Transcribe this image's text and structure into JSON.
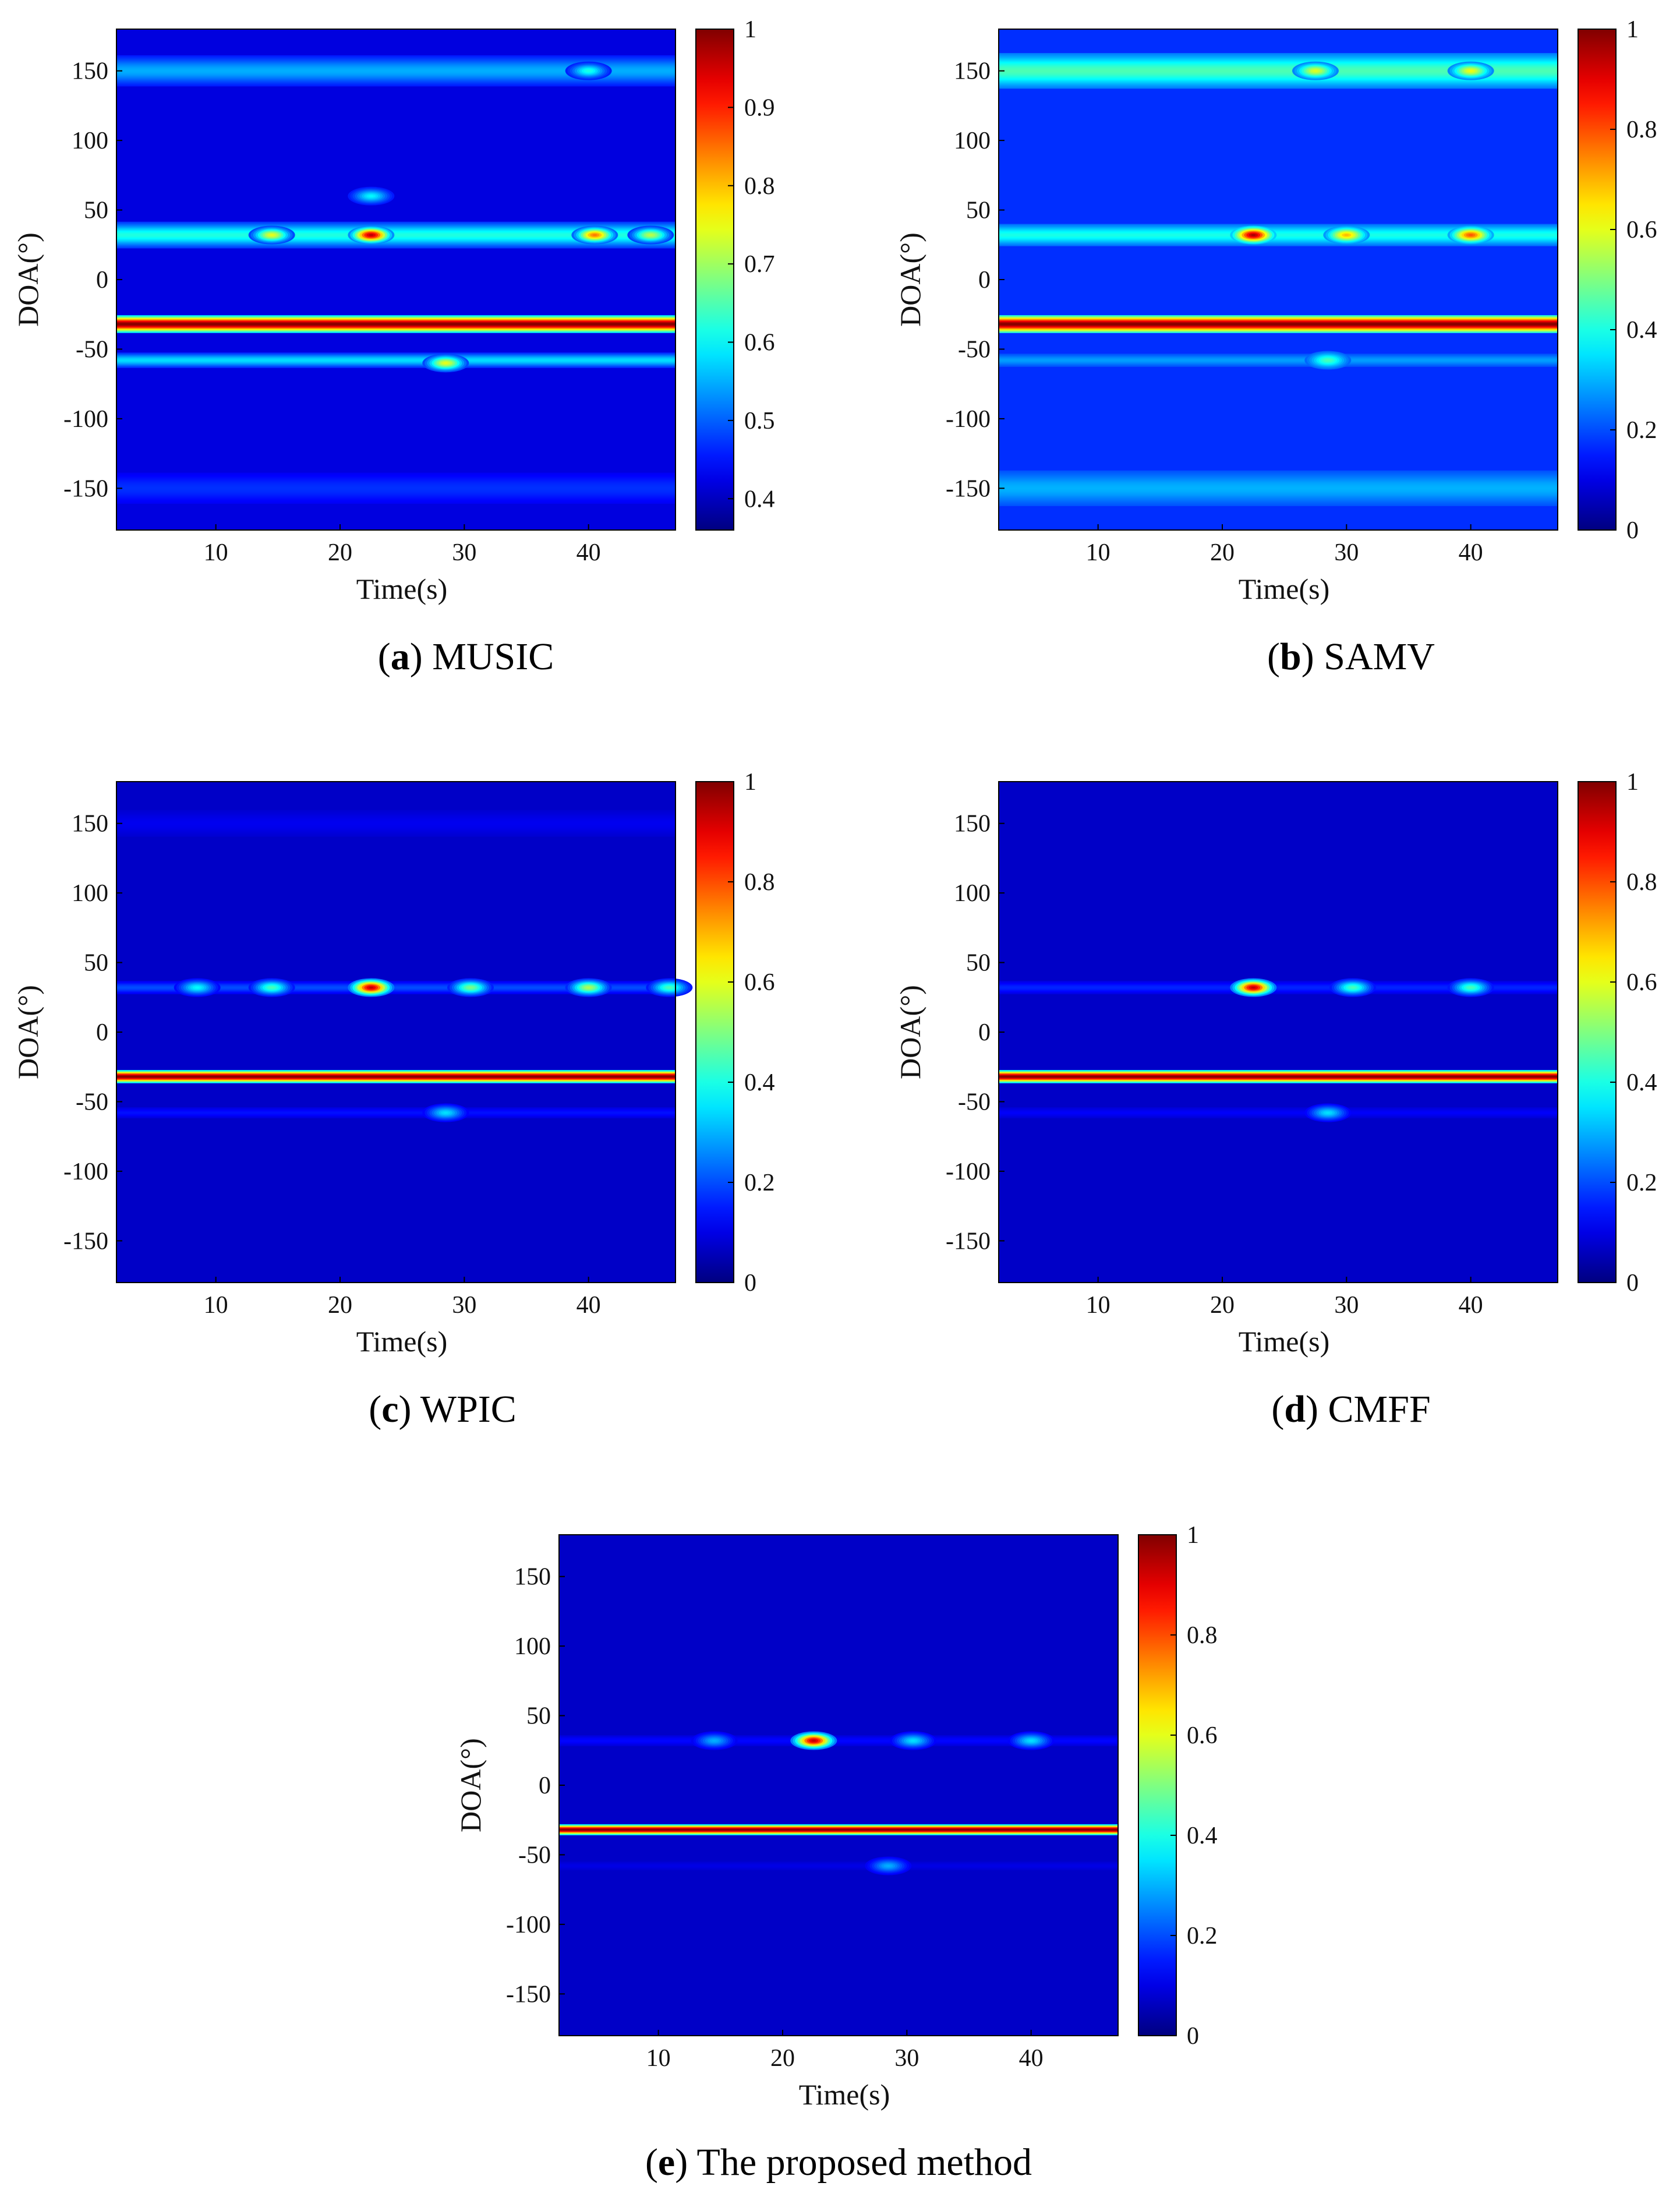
{
  "colors": {
    "frame": "#000000",
    "background": "#ffffff"
  },
  "colormap": "jet",
  "chart_data": [
    {
      "id": "a",
      "type": "heatmap",
      "letter": "a",
      "method": "MUSIC",
      "xlabel": "Time(s)",
      "ylabel": "DOA(°)",
      "xlim": [
        2,
        47
      ],
      "ylim": [
        -180,
        180
      ],
      "xticks": [
        "10",
        "20",
        "30",
        "40"
      ],
      "xtick_values": [
        10,
        20,
        30,
        40
      ],
      "yticks": [
        "150",
        "100",
        "50",
        "0",
        "-50",
        "-100",
        "-150"
      ],
      "ytick_values": [
        150,
        100,
        50,
        0,
        -50,
        -100,
        -150
      ],
      "colorbar": {
        "ticks": [
          "1",
          "0.9",
          "0.8",
          "0.7",
          "0.6",
          "0.5",
          "0.4"
        ],
        "tick_values": [
          1,
          0.9,
          0.8,
          0.7,
          0.6,
          0.5,
          0.4
        ],
        "range": [
          0.36,
          1
        ]
      },
      "background_level": 0.42,
      "bands": [
        {
          "doa": 150,
          "level": 0.55,
          "width": 7
        },
        {
          "doa": 32,
          "level": 0.62,
          "width": 6
        },
        {
          "doa": -32,
          "level": 1.0,
          "width": 4
        },
        {
          "doa": -58,
          "level": 0.58,
          "width": 3.5
        },
        {
          "doa": -150,
          "level": 0.47,
          "width": 7
        }
      ],
      "peaks": [
        {
          "time": 22.5,
          "doa": 32,
          "level": 0.97
        },
        {
          "time": 40.5,
          "doa": 32,
          "level": 0.85
        },
        {
          "time": 14.5,
          "doa": 32,
          "level": 0.75
        },
        {
          "time": 45,
          "doa": 32,
          "level": 0.72
        },
        {
          "time": 28.5,
          "doa": -60,
          "level": 0.75
        },
        {
          "time": 40,
          "doa": 150,
          "level": 0.62
        },
        {
          "time": 22.5,
          "doa": 60,
          "level": 0.6
        }
      ]
    },
    {
      "id": "b",
      "type": "heatmap",
      "letter": "b",
      "method": "SAMV",
      "xlabel": "Time(s)",
      "ylabel": "DOA(°)",
      "xlim": [
        2,
        47
      ],
      "ylim": [
        -180,
        180
      ],
      "xticks": [
        "10",
        "20",
        "30",
        "40"
      ],
      "xtick_values": [
        10,
        20,
        30,
        40
      ],
      "yticks": [
        "150",
        "100",
        "50",
        "0",
        "-50",
        "-100",
        "-150"
      ],
      "ytick_values": [
        150,
        100,
        50,
        0,
        -50,
        -100,
        -150
      ],
      "colorbar": {
        "ticks": [
          "1",
          "0.8",
          "0.6",
          "0.4",
          "0.2",
          "0"
        ],
        "tick_values": [
          1,
          0.8,
          0.6,
          0.4,
          0.2,
          0
        ],
        "range": [
          0,
          1
        ]
      },
      "background_level": 0.17,
      "bands": [
        {
          "doa": 150,
          "level": 0.45,
          "width": 8
        },
        {
          "doa": 32,
          "level": 0.4,
          "width": 5
        },
        {
          "doa": -32,
          "level": 1.0,
          "width": 4
        },
        {
          "doa": -58,
          "level": 0.28,
          "width": 3
        },
        {
          "doa": -150,
          "level": 0.3,
          "width": 8
        }
      ],
      "peaks": [
        {
          "time": 22.5,
          "doa": 32,
          "level": 0.97
        },
        {
          "time": 40,
          "doa": 32,
          "level": 0.8
        },
        {
          "time": 30,
          "doa": 32,
          "level": 0.7
        },
        {
          "time": 27.5,
          "doa": 150,
          "level": 0.6
        },
        {
          "time": 40,
          "doa": 150,
          "level": 0.62
        },
        {
          "time": 28.5,
          "doa": -58,
          "level": 0.45
        }
      ]
    },
    {
      "id": "c",
      "type": "heatmap",
      "letter": "c",
      "method": "WPIC",
      "xlabel": "Time(s)",
      "ylabel": "DOA(°)",
      "xlim": [
        2,
        47
      ],
      "ylim": [
        -180,
        180
      ],
      "xticks": [
        "10",
        "20",
        "30",
        "40"
      ],
      "xtick_values": [
        10,
        20,
        30,
        40
      ],
      "yticks": [
        "150",
        "100",
        "50",
        "0",
        "-50",
        "-100",
        "-150"
      ],
      "ytick_values": [
        150,
        100,
        50,
        0,
        -50,
        -100,
        -150
      ],
      "colorbar": {
        "ticks": [
          "1",
          "0.8",
          "0.6",
          "0.4",
          "0.2",
          "0"
        ],
        "tick_values": [
          1,
          0.8,
          0.6,
          0.4,
          0.2,
          0
        ],
        "range": [
          0,
          1
        ]
      },
      "background_level": 0.07,
      "bands": [
        {
          "doa": 150,
          "level": 0.11,
          "width": 6
        },
        {
          "doa": 32,
          "level": 0.2,
          "width": 3
        },
        {
          "doa": -32,
          "level": 1.0,
          "width": 3
        },
        {
          "doa": -58,
          "level": 0.14,
          "width": 2.5
        }
      ],
      "peaks": [
        {
          "time": 22.5,
          "doa": 32,
          "level": 0.95
        },
        {
          "time": 40,
          "doa": 32,
          "level": 0.55
        },
        {
          "time": 30.5,
          "doa": 32,
          "level": 0.5
        },
        {
          "time": 14.5,
          "doa": 32,
          "level": 0.45
        },
        {
          "time": 46.5,
          "doa": 32,
          "level": 0.45
        },
        {
          "time": 8.5,
          "doa": 32,
          "level": 0.38
        },
        {
          "time": 28.5,
          "doa": -58,
          "level": 0.35
        }
      ]
    },
    {
      "id": "d",
      "type": "heatmap",
      "letter": "d",
      "method": "CMFF",
      "xlabel": "Time(s)",
      "ylabel": "DOA(°)",
      "xlim": [
        2,
        47
      ],
      "ylim": [
        -180,
        180
      ],
      "xticks": [
        "10",
        "20",
        "30",
        "40"
      ],
      "xtick_values": [
        10,
        20,
        30,
        40
      ],
      "yticks": [
        "150",
        "100",
        "50",
        "0",
        "-50",
        "-100",
        "-150"
      ],
      "ytick_values": [
        150,
        100,
        50,
        0,
        -50,
        -100,
        -150
      ],
      "colorbar": {
        "ticks": [
          "1",
          "0.8",
          "0.6",
          "0.4",
          "0.2",
          "0"
        ],
        "tick_values": [
          1,
          0.8,
          0.6,
          0.4,
          0.2,
          0
        ],
        "range": [
          0,
          1
        ]
      },
      "background_level": 0.07,
      "bands": [
        {
          "doa": 32,
          "level": 0.16,
          "width": 3
        },
        {
          "doa": -32,
          "level": 1.0,
          "width": 3
        },
        {
          "doa": -58,
          "level": 0.12,
          "width": 2.5
        }
      ],
      "peaks": [
        {
          "time": 22.5,
          "doa": 32,
          "level": 0.95
        },
        {
          "time": 30.5,
          "doa": 32,
          "level": 0.45
        },
        {
          "time": 40,
          "doa": 32,
          "level": 0.45
        },
        {
          "time": 28.5,
          "doa": -58,
          "level": 0.35
        }
      ]
    },
    {
      "id": "e",
      "type": "heatmap",
      "letter": "e",
      "method": "The proposed method",
      "xlabel": "Time(s)",
      "ylabel": "DOA(°)",
      "xlim": [
        2,
        47
      ],
      "ylim": [
        -180,
        180
      ],
      "xticks": [
        "10",
        "20",
        "30",
        "40"
      ],
      "xtick_values": [
        10,
        20,
        30,
        40
      ],
      "yticks": [
        "150",
        "100",
        "50",
        "0",
        "-50",
        "-100",
        "-150"
      ],
      "ytick_values": [
        150,
        100,
        50,
        0,
        -50,
        -100,
        -150
      ],
      "colorbar": {
        "ticks": [
          "1",
          "0.8",
          "0.6",
          "0.4",
          "0.2",
          "0"
        ],
        "tick_values": [
          1,
          0.8,
          0.6,
          0.4,
          0.2,
          0
        ],
        "range": [
          0,
          1
        ]
      },
      "background_level": 0.07,
      "bands": [
        {
          "doa": 32,
          "level": 0.13,
          "width": 2.5
        },
        {
          "doa": -32,
          "level": 1.0,
          "width": 2.5
        },
        {
          "doa": -58,
          "level": 0.1,
          "width": 2
        }
      ],
      "peaks": [
        {
          "time": 22.5,
          "doa": 32,
          "level": 0.95
        },
        {
          "time": 30.5,
          "doa": 32,
          "level": 0.35
        },
        {
          "time": 40,
          "doa": 32,
          "level": 0.35
        },
        {
          "time": 14.5,
          "doa": 32,
          "level": 0.3
        },
        {
          "time": 28.5,
          "doa": -58,
          "level": 0.3
        }
      ]
    }
  ]
}
